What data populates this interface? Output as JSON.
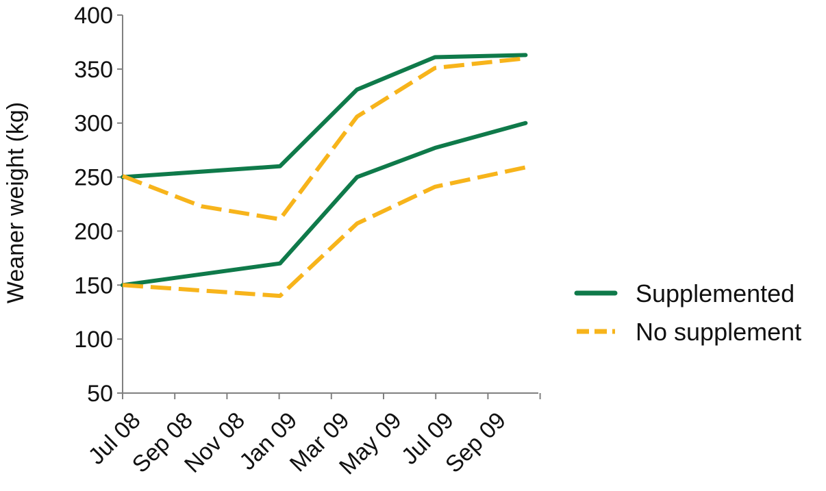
{
  "chart_data": {
    "type": "line",
    "title": "",
    "xlabel": "",
    "ylabel": "Weaner weight (kg)",
    "ylim": [
      50,
      400
    ],
    "yticks": [
      50,
      100,
      150,
      200,
      250,
      300,
      350,
      400
    ],
    "x_tick_labels": [
      "Jul 08",
      "Sep 08",
      "Nov 08",
      "Jan 09",
      "Mar 09",
      "May 09",
      "Jul 09",
      "Sep 09"
    ],
    "x_range": [
      "2008-07-01",
      "2009-11-01"
    ],
    "grid": false,
    "legend_position": "right",
    "legend": [
      {
        "label": "Supplemented",
        "color": "#0f7a4a",
        "style": "solid"
      },
      {
        "label": "No supplement",
        "color": "#f7b41b",
        "style": "dashed"
      }
    ],
    "series": [
      {
        "group": "Supplemented",
        "color": "#0f7a4a",
        "style": "solid",
        "points": [
          {
            "x": "2008-07-01",
            "y": 250
          },
          {
            "x": "2009-01-01",
            "y": 260
          },
          {
            "x": "2009-04-01",
            "y": 331
          },
          {
            "x": "2009-07-01",
            "y": 361
          },
          {
            "x": "2009-10-15",
            "y": 363
          }
        ]
      },
      {
        "group": "No supplement",
        "color": "#f7b41b",
        "style": "dashed",
        "points": [
          {
            "x": "2008-07-01",
            "y": 251
          },
          {
            "x": "2008-10-01",
            "y": 223
          },
          {
            "x": "2009-01-01",
            "y": 211
          },
          {
            "x": "2009-04-01",
            "y": 306
          },
          {
            "x": "2009-07-01",
            "y": 351
          },
          {
            "x": "2009-10-15",
            "y": 360
          }
        ]
      },
      {
        "group": "Supplemented",
        "color": "#0f7a4a",
        "style": "solid",
        "points": [
          {
            "x": "2008-07-01",
            "y": 150
          },
          {
            "x": "2009-01-01",
            "y": 170
          },
          {
            "x": "2009-04-01",
            "y": 250
          },
          {
            "x": "2009-07-01",
            "y": 277
          },
          {
            "x": "2009-10-15",
            "y": 300
          }
        ]
      },
      {
        "group": "No supplement",
        "color": "#f7b41b",
        "style": "dashed",
        "points": [
          {
            "x": "2008-07-01",
            "y": 150
          },
          {
            "x": "2009-01-01",
            "y": 140
          },
          {
            "x": "2009-04-01",
            "y": 207
          },
          {
            "x": "2009-07-01",
            "y": 241
          },
          {
            "x": "2009-10-15",
            "y": 259
          }
        ]
      }
    ]
  }
}
